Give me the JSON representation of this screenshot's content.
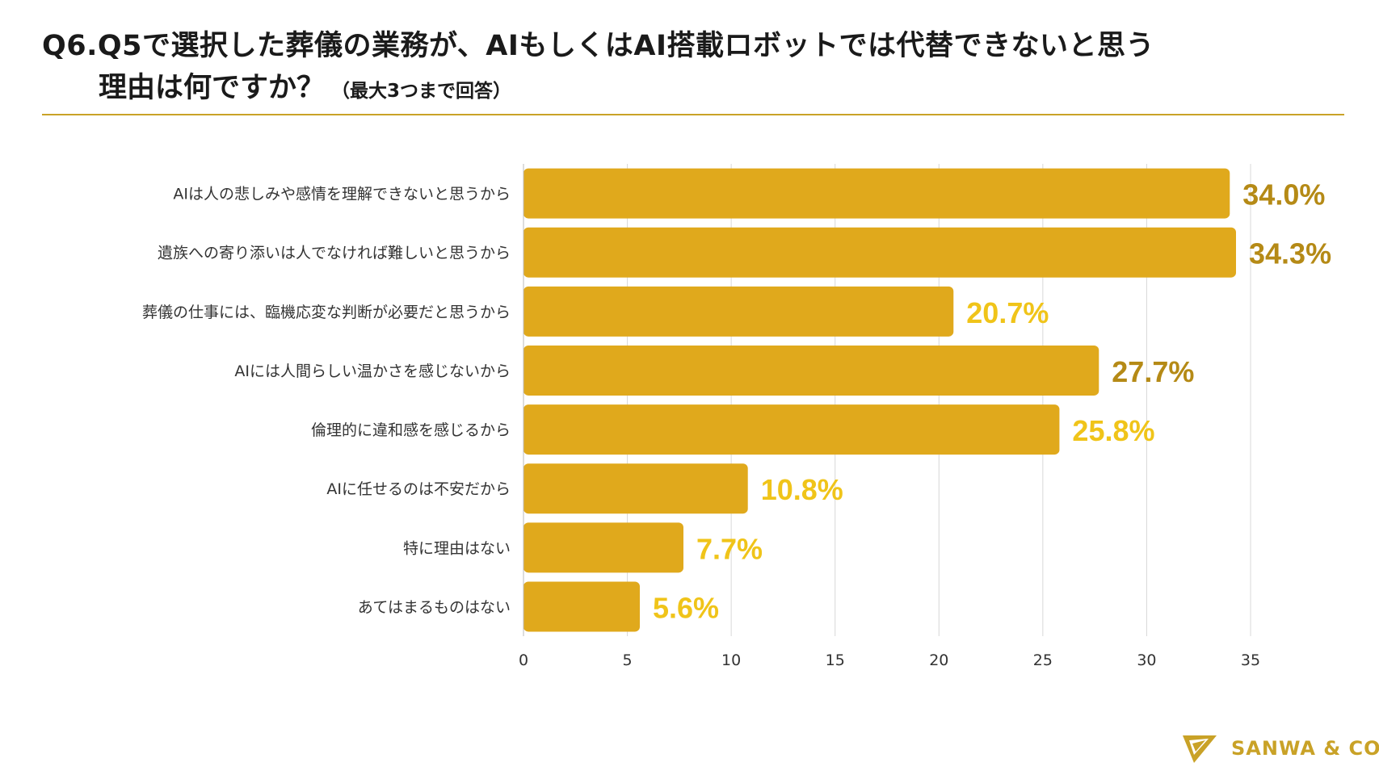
{
  "title": {
    "line1": "Q6.Q5で選択した葬儀の業務が、AIもしくはAI搭載ロボットでは代替できないと思う",
    "line2": "理由は何ですか？",
    "note": "（最大3つまで回答）"
  },
  "colors": {
    "bar": "#e0a91c",
    "label_dark": "#b58a16",
    "label_bright": "#f0c419",
    "grid": "#d8d8d8",
    "rule": "#c9a227",
    "brand": "#c9a227"
  },
  "brand": {
    "name": "SANWA & CO.",
    "logo_icon": "paper-plane-icon"
  },
  "chart_data": {
    "type": "bar",
    "orientation": "horizontal",
    "categories": [
      "AIは人の悲しみや感情を理解できないと思うから",
      "遺族への寄り添いは人でなければ難しいと思うから",
      "葬儀の仕事には、臨機応変な判断が必要だと思うから",
      "AIには人間らしい温かさを感じないから",
      "倫理的に違和感を感じるから",
      "AIに任せるのは不安だから",
      "特に理由はない",
      "あてはまるものはない"
    ],
    "values": [
      34.0,
      34.3,
      20.7,
      27.7,
      25.8,
      10.8,
      7.7,
      5.6
    ],
    "data_labels": [
      "34.0%",
      "34.3%",
      "20.7%",
      "27.7%",
      "25.8%",
      "10.8%",
      "7.7%",
      "5.6%"
    ],
    "xlim": [
      0,
      35
    ],
    "xticks": [
      0,
      5,
      10,
      15,
      20,
      25,
      30,
      35
    ],
    "grid": true,
    "legend": "none"
  }
}
